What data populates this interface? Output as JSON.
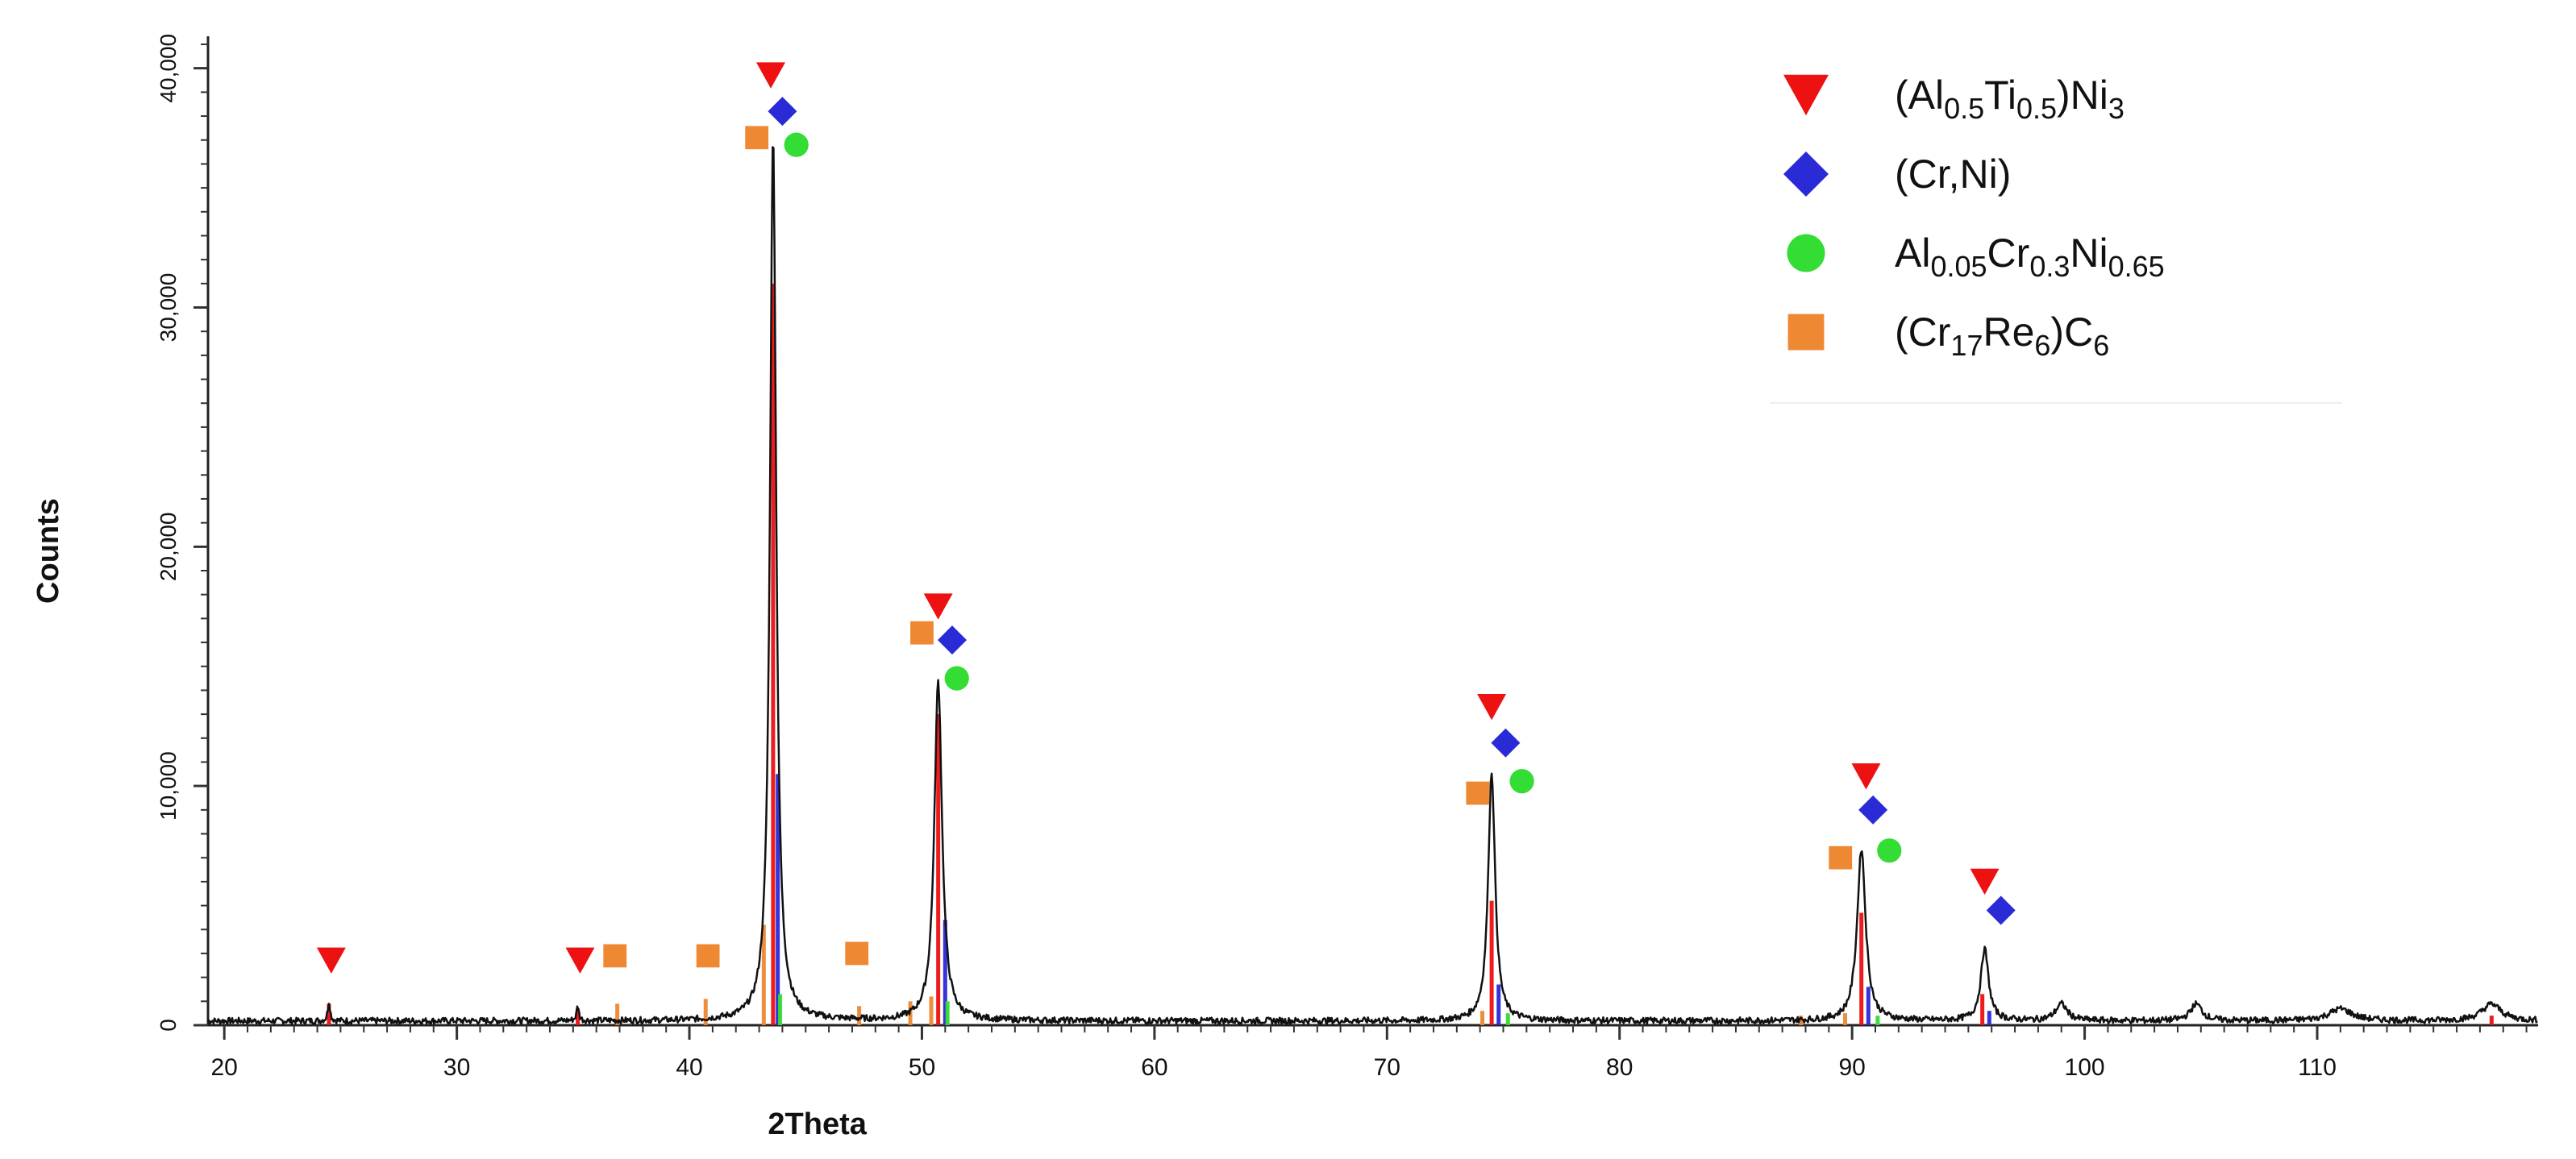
{
  "chart_data": {
    "type": "line",
    "title": "",
    "xlabel": "2Theta",
    "ylabel": "Counts",
    "xlim": [
      19.3,
      119.5
    ],
    "ylim": [
      0,
      41000
    ],
    "grid": false,
    "x_ticks": [
      20,
      30,
      40,
      50,
      60,
      70,
      80,
      90,
      100,
      110
    ],
    "x_tick_labels": [
      "20",
      "30",
      "40",
      "50",
      "60",
      "70",
      "80",
      "90",
      "100",
      "110"
    ],
    "y_ticks": [
      0,
      10000,
      20000,
      30000,
      40000
    ],
    "y_tick_labels": [
      "0",
      "10,000",
      "20,000",
      "30,000",
      "40,000"
    ],
    "legend_position": "top-right",
    "colors": {
      "pattern": "#111111",
      "AlTiNi3": "#ee1111",
      "CrNi": "#2a2ad6",
      "AlCrNi": "#33dd33",
      "CrReC": "#ee8833"
    },
    "peaks": [
      {
        "x": 24.5,
        "y": 800,
        "w": 0.06
      },
      {
        "x": 35.2,
        "y": 600,
        "w": 0.06
      },
      {
        "x": 43.6,
        "y": 37000,
        "w": 0.16
      },
      {
        "x": 50.7,
        "y": 14200,
        "w": 0.2
      },
      {
        "x": 74.5,
        "y": 10400,
        "w": 0.18
      },
      {
        "x": 90.4,
        "y": 7200,
        "w": 0.22
      },
      {
        "x": 95.7,
        "y": 3000,
        "w": 0.2
      },
      {
        "x": 99.0,
        "y": 700,
        "w": 0.3
      },
      {
        "x": 104.8,
        "y": 700,
        "w": 0.3
      },
      {
        "x": 111.0,
        "y": 500,
        "w": 0.6
      },
      {
        "x": 117.5,
        "y": 700,
        "w": 0.5
      }
    ],
    "series": [
      {
        "name": "(Al0.5Ti0.5)Ni3",
        "legend": {
          "pre": "(Al",
          "s1": "0.5",
          "m1": "Ti",
          "s2": "0.5",
          "m2": ")Ni",
          "s3": "3"
        },
        "marker": "triangle-down",
        "color": "#ee1111",
        "stick_positions": [
          24.5,
          35.2,
          43.6,
          50.7,
          74.5,
          90.4,
          95.6,
          117.5
        ],
        "stick_intensities": [
          900,
          700,
          31000,
          13000,
          5200,
          4700,
          1300,
          400
        ],
        "marker_points": [
          {
            "x": 24.6,
            "y": 2700
          },
          {
            "x": 35.3,
            "y": 2700
          },
          {
            "x": 43.5,
            "y": 39700
          },
          {
            "x": 50.7,
            "y": 17500
          },
          {
            "x": 74.5,
            "y": 13300
          },
          {
            "x": 90.6,
            "y": 10400
          },
          {
            "x": 95.7,
            "y": 6000
          }
        ]
      },
      {
        "name": "(Cr,Ni)",
        "legend": {
          "pre": "(Cr,Ni)",
          "s1": "",
          "m1": "",
          "s2": "",
          "m2": "",
          "s3": ""
        },
        "marker": "diamond",
        "color": "#2a2ad6",
        "stick_positions": [
          43.8,
          51.0,
          74.8,
          90.7,
          95.9
        ],
        "stick_intensities": [
          10500,
          4400,
          1700,
          1600,
          600
        ],
        "marker_points": [
          {
            "x": 44.0,
            "y": 38200
          },
          {
            "x": 51.3,
            "y": 16100
          },
          {
            "x": 75.1,
            "y": 11800
          },
          {
            "x": 90.9,
            "y": 9000
          },
          {
            "x": 96.4,
            "y": 4800
          }
        ]
      },
      {
        "name": "Al0.05Cr0.3Ni0.65",
        "legend": {
          "pre": "Al",
          "s1": "0.05",
          "m1": "Cr",
          "s2": "0.3",
          "m2": "Ni",
          "s3": "0.65"
        },
        "marker": "circle",
        "color": "#33dd33",
        "stick_positions": [
          43.9,
          51.1,
          75.2,
          91.1
        ],
        "stick_intensities": [
          1300,
          1000,
          500,
          400
        ],
        "marker_points": [
          {
            "x": 44.6,
            "y": 36800
          },
          {
            "x": 51.5,
            "y": 14500
          },
          {
            "x": 75.8,
            "y": 10200
          },
          {
            "x": 91.6,
            "y": 7300
          }
        ]
      },
      {
        "name": "(Cr17Re6)C6",
        "legend": {
          "pre": "(Cr",
          "s1": "17",
          "m1": "Re",
          "s2": "6",
          "m2": ")C",
          "s3": "6"
        },
        "marker": "square",
        "color": "#ee8833",
        "stick_positions": [
          36.9,
          40.7,
          43.2,
          47.3,
          49.5,
          50.4,
          74.1,
          87.8,
          89.7
        ],
        "stick_intensities": [
          900,
          1100,
          4200,
          800,
          1000,
          1200,
          600,
          400,
          500
        ],
        "marker_points": [
          {
            "x": 36.8,
            "y": 2900
          },
          {
            "x": 40.8,
            "y": 2900
          },
          {
            "x": 47.2,
            "y": 3000
          },
          {
            "x": 42.9,
            "y": 37100
          },
          {
            "x": 50.0,
            "y": 16400
          },
          {
            "x": 73.9,
            "y": 9700
          },
          {
            "x": 89.5,
            "y": 7000
          }
        ]
      }
    ]
  }
}
